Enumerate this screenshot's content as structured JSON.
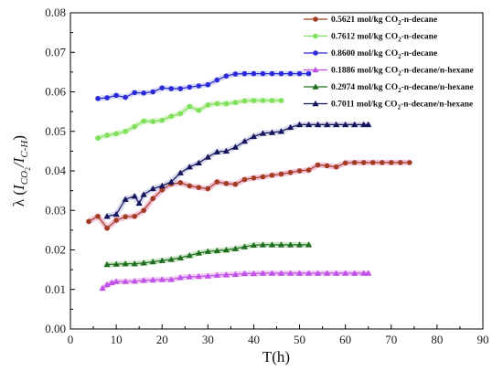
{
  "chart_data": {
    "type": "line",
    "xlabel": "T(h)",
    "ylabel": "λ (I_CO2/I_C-H)",
    "ylabel_parts": {
      "lambda": "λ (",
      "i1": "I",
      "sub1": "CO",
      "sub1b": "2",
      "slash": "/",
      "i2": "I",
      "sub2": "C-H",
      "close": ")"
    },
    "xlim": [
      0,
      90
    ],
    "ylim": [
      0.0,
      0.08
    ],
    "x_ticks": [
      "0",
      "10",
      "20",
      "30",
      "40",
      "50",
      "60",
      "70",
      "80",
      "90"
    ],
    "y_ticks": [
      "0.00",
      "0.01",
      "0.02",
      "0.03",
      "0.04",
      "0.05",
      "0.06",
      "0.07",
      "0.08"
    ],
    "legend_position": "top-right",
    "series": [
      {
        "name": "0.5621 mol/kg CO2-n-decane",
        "label_parts": {
          "pre": "0.5621 mol/kg CO",
          "sub": "2",
          "post": "-n-decane"
        },
        "color": "#a23c22",
        "marker": "circle",
        "band": "#f0a8c8",
        "x": [
          4,
          6,
          8,
          10,
          12,
          14,
          16,
          18,
          20,
          22,
          24,
          26,
          28,
          30,
          32,
          34,
          36,
          38,
          40,
          42,
          44,
          46,
          48,
          50,
          52,
          54,
          56,
          58,
          60,
          62,
          64,
          66,
          68,
          70,
          72,
          74
        ],
        "y": [
          0.0272,
          0.0285,
          0.0255,
          0.0275,
          0.0284,
          0.0285,
          0.03,
          0.033,
          0.0352,
          0.0367,
          0.037,
          0.0362,
          0.0358,
          0.0355,
          0.0372,
          0.0368,
          0.0366,
          0.0378,
          0.0382,
          0.0385,
          0.0389,
          0.0392,
          0.0396,
          0.04,
          0.0402,
          0.0415,
          0.0413,
          0.041,
          0.042,
          0.0421,
          0.0421,
          0.0421,
          0.0421,
          0.0421,
          0.0421,
          0.0421
        ]
      },
      {
        "name": "0.7612 mol/kg CO2-n-decane",
        "label_parts": {
          "pre": "0.7612 mol/kg CO",
          "sub": "2",
          "post": "-n-decane"
        },
        "color": "#7ee05a",
        "marker": "circle",
        "band": "#c8f0b0",
        "x": [
          6,
          8,
          10,
          12,
          14,
          16,
          18,
          20,
          22,
          24,
          26,
          28,
          30,
          32,
          34,
          36,
          38,
          40,
          42,
          44,
          46
        ],
        "y": [
          0.0483,
          0.049,
          0.0494,
          0.05,
          0.0512,
          0.0526,
          0.0525,
          0.0528,
          0.0538,
          0.0545,
          0.0563,
          0.0553,
          0.0567,
          0.057,
          0.057,
          0.0573,
          0.0577,
          0.0578,
          0.0578,
          0.0578,
          0.0578
        ]
      },
      {
        "name": "0.8600 mol/kg CO2-n-decane",
        "label_parts": {
          "pre": "0.8600 mol/kg CO",
          "sub": "2",
          "post": "-n-decane"
        },
        "color": "#2a2ad8",
        "marker": "circle",
        "band": "#c8c8f5",
        "x": [
          6,
          8,
          10,
          12,
          14,
          16,
          18,
          20,
          22,
          24,
          26,
          28,
          30,
          32,
          34,
          36,
          38,
          40,
          42,
          44,
          46,
          48,
          50,
          52
        ],
        "y": [
          0.0583,
          0.0585,
          0.0591,
          0.0586,
          0.0598,
          0.0597,
          0.06,
          0.061,
          0.0608,
          0.0608,
          0.0612,
          0.0615,
          0.0618,
          0.063,
          0.064,
          0.0645,
          0.0646,
          0.0646,
          0.0646,
          0.0646,
          0.0646,
          0.0646,
          0.0646,
          0.0646
        ]
      },
      {
        "name": "0.1886 mol/kg CO2-n-decane/n-hexane",
        "label_parts": {
          "pre": "0.1886 mol/kg CO",
          "sub": "2",
          "post": "-n-decane/n-hexane"
        },
        "color": "#c050e8",
        "marker": "triangle",
        "band": "#eab6ef",
        "x": [
          7,
          8,
          9,
          10,
          12,
          14,
          16,
          18,
          20,
          22,
          24,
          26,
          28,
          30,
          32,
          34,
          36,
          38,
          40,
          42,
          44,
          46,
          48,
          50,
          52,
          54,
          56,
          58,
          60,
          62,
          64,
          65
        ],
        "y": [
          0.0103,
          0.0112,
          0.0117,
          0.012,
          0.012,
          0.0121,
          0.0123,
          0.0124,
          0.0125,
          0.0125,
          0.013,
          0.0132,
          0.0133,
          0.0134,
          0.0136,
          0.0137,
          0.0138,
          0.014,
          0.014,
          0.0141,
          0.0141,
          0.0141,
          0.0141,
          0.0141,
          0.0141,
          0.0141,
          0.0141,
          0.0141,
          0.0141,
          0.0141,
          0.0141,
          0.0141
        ]
      },
      {
        "name": "0.2974 mol/kg CO2-n-decane/n-hexane",
        "label_parts": {
          "pre": "0.2974 mol/kg CO",
          "sub": "2",
          "post": "-n-decane/n-hexane"
        },
        "color": "#1f6e1f",
        "marker": "triangle",
        "band": "#b8dcb0",
        "x": [
          8,
          10,
          12,
          14,
          16,
          18,
          20,
          22,
          24,
          26,
          28,
          30,
          32,
          34,
          36,
          38,
          40,
          42,
          44,
          46,
          48,
          50,
          52
        ],
        "y": [
          0.0163,
          0.0164,
          0.0165,
          0.0165,
          0.0167,
          0.017,
          0.0173,
          0.0176,
          0.018,
          0.0186,
          0.0192,
          0.0196,
          0.0198,
          0.02,
          0.0203,
          0.0208,
          0.0212,
          0.0213,
          0.0213,
          0.0213,
          0.0213,
          0.0213,
          0.0213
        ]
      },
      {
        "name": "0.7011 mol/kg CO2-n-decane/n-hexane",
        "label_parts": {
          "pre": "0.7011 mol/kg CO",
          "sub": "2",
          "post": "-n-decane/n-hexane"
        },
        "color": "#14145a",
        "marker": "triangle",
        "band": "#c8c8e6",
        "x": [
          8,
          10,
          12,
          14,
          15,
          16,
          18,
          20,
          22,
          24,
          26,
          28,
          30,
          32,
          34,
          36,
          38,
          40,
          42,
          44,
          46,
          48,
          50,
          52,
          54,
          56,
          58,
          60,
          62,
          64,
          65
        ],
        "y": [
          0.0285,
          0.029,
          0.0328,
          0.0336,
          0.0318,
          0.034,
          0.0355,
          0.0362,
          0.0372,
          0.0395,
          0.041,
          0.042,
          0.0435,
          0.0448,
          0.045,
          0.046,
          0.0475,
          0.0487,
          0.0495,
          0.0497,
          0.05,
          0.051,
          0.0517,
          0.0517,
          0.0517,
          0.0517,
          0.0517,
          0.0517,
          0.0517,
          0.0517,
          0.0517
        ]
      }
    ]
  }
}
